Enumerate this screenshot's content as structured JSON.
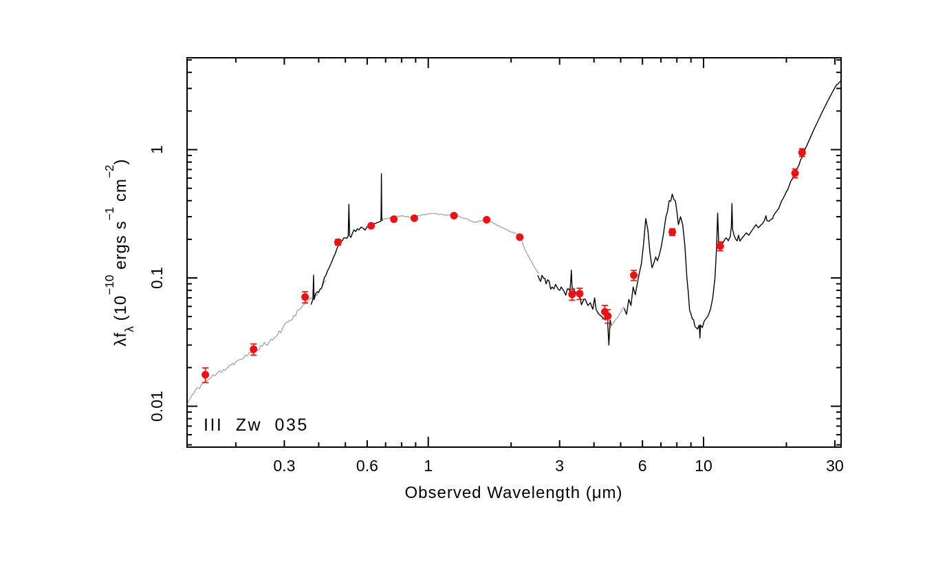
{
  "labels": {
    "x": "Observed Wavelength (μm)",
    "y": {
      "p1": "λf",
      "s1": "λ",
      "p2": " (10",
      "e1": "−10",
      "p3": " ergs s",
      "e2": "−1",
      "p4": " cm",
      "e3": "−2",
      "p5": ")"
    }
  },
  "chart_data": {
    "type": "line",
    "title": "III Zw 035",
    "xlabel": "Observed Wavelength (μm)",
    "ylabel": "λfλ (10−10 ergs s−1 cm−2)",
    "xscale": "log",
    "yscale": "log",
    "xlim": [
      0.133,
      31.6
    ],
    "ylim": [
      0.0048,
      5.2
    ],
    "grid": false,
    "legend": "none",
    "colors": {
      "background": "#ffffff",
      "axis": "#000000",
      "spectrum_observed": "#000000",
      "spectrum_model": "#a9a9a9",
      "photometry": "#ed1211"
    },
    "axes": {
      "x": {
        "labeled": [
          {
            "v": 0.3,
            "t": "0.3"
          },
          {
            "v": 0.6,
            "t": "0.6"
          },
          {
            "v": 1,
            "t": "1"
          },
          {
            "v": 3,
            "t": "3"
          },
          {
            "v": 6,
            "t": "6"
          },
          {
            "v": 10,
            "t": "10"
          },
          {
            "v": 30,
            "t": "30"
          }
        ],
        "decades": [
          1,
          10
        ],
        "minor": [
          0.2,
          0.4,
          0.5,
          0.7,
          0.8,
          0.9,
          2,
          4,
          5,
          7,
          8,
          9,
          20
        ]
      },
      "y": {
        "labeled": [
          {
            "v": 0.01,
            "t": "0.01"
          },
          {
            "v": 0.1,
            "t": "0.1"
          },
          {
            "v": 1,
            "t": "1"
          }
        ],
        "decades": [
          0.01,
          0.1,
          1
        ],
        "minor": [
          0.005,
          0.006,
          0.007,
          0.008,
          0.009,
          0.02,
          0.03,
          0.04,
          0.05,
          0.06,
          0.07,
          0.08,
          0.09,
          0.2,
          0.3,
          0.4,
          0.5,
          0.6,
          0.7,
          0.8,
          0.9,
          2,
          3,
          4,
          5
        ]
      }
    },
    "series": [
      {
        "name": "model-spectrum-uv",
        "role": "model",
        "color": "#a9a9a9",
        "jitter_dex": 0.02,
        "seed": 11,
        "points": [
          [
            0.133,
            0.0105
          ],
          [
            0.14,
            0.0125
          ],
          [
            0.15,
            0.0148
          ],
          [
            0.16,
            0.0163
          ],
          [
            0.17,
            0.0178
          ],
          [
            0.18,
            0.0193
          ],
          [
            0.19,
            0.0208
          ],
          [
            0.2,
            0.0222
          ],
          [
            0.21,
            0.0233
          ],
          [
            0.22,
            0.0247
          ],
          [
            0.235,
            0.0275
          ],
          [
            0.25,
            0.0295
          ],
          [
            0.265,
            0.0318
          ],
          [
            0.28,
            0.0348
          ],
          [
            0.295,
            0.04
          ],
          [
            0.31,
            0.0455
          ],
          [
            0.325,
            0.051
          ],
          [
            0.34,
            0.0565
          ],
          [
            0.355,
            0.063
          ],
          [
            0.37,
            0.068
          ],
          [
            0.385,
            0.0715
          ],
          [
            0.4,
            0.078
          ],
          [
            0.412,
            0.086
          ],
          [
            0.425,
            0.096
          ]
        ]
      },
      {
        "name": "model-spectrum-nir",
        "role": "model",
        "color": "#a9a9a9",
        "jitter_dex": 0.005,
        "seed": 22,
        "points": [
          [
            0.678,
            0.283
          ],
          [
            0.7,
            0.29
          ],
          [
            0.73,
            0.296
          ],
          [
            0.76,
            0.3
          ],
          [
            0.8,
            0.304
          ],
          [
            0.84,
            0.302
          ],
          [
            0.88,
            0.3
          ],
          [
            0.92,
            0.306
          ],
          [
            0.96,
            0.311
          ],
          [
            1.0,
            0.315
          ],
          [
            1.05,
            0.317
          ],
          [
            1.1,
            0.314
          ],
          [
            1.16,
            0.311
          ],
          [
            1.22,
            0.308
          ],
          [
            1.3,
            0.301
          ],
          [
            1.38,
            0.29
          ],
          [
            1.44,
            0.276
          ],
          [
            1.48,
            0.272
          ],
          [
            1.54,
            0.279
          ],
          [
            1.6,
            0.284
          ],
          [
            1.66,
            0.277
          ],
          [
            1.72,
            0.268
          ],
          [
            1.8,
            0.256
          ],
          [
            1.88,
            0.244
          ],
          [
            1.96,
            0.233
          ],
          [
            2.04,
            0.226
          ],
          [
            2.1,
            0.219
          ],
          [
            2.16,
            0.208
          ],
          [
            2.24,
            0.168
          ],
          [
            2.32,
            0.146
          ],
          [
            2.4,
            0.128
          ],
          [
            2.46,
            0.116
          ],
          [
            2.52,
            0.108
          ]
        ]
      },
      {
        "name": "model-spectrum-bridge",
        "role": "model",
        "color": "#a9a9a9",
        "jitter_dex": 0.006,
        "seed": 33,
        "points": [
          [
            4.55,
            0.04
          ],
          [
            4.75,
            0.046
          ],
          [
            4.95,
            0.052
          ],
          [
            5.15,
            0.06
          ]
        ]
      },
      {
        "name": "observed-spectrum-optical",
        "role": "observed",
        "color": "#000000",
        "jitter_dex": 0.022,
        "seed": 44,
        "points": [
          [
            0.375,
            0.062
          ],
          [
            0.381,
            0.068
          ],
          [
            0.383,
            0.105
          ],
          [
            0.385,
            0.068
          ],
          [
            0.395,
            0.078
          ],
          [
            0.405,
            0.082
          ],
          [
            0.415,
            0.092
          ],
          [
            0.425,
            0.105
          ],
          [
            0.435,
            0.118
          ],
          [
            0.445,
            0.132
          ],
          [
            0.455,
            0.148
          ],
          [
            0.465,
            0.168
          ],
          [
            0.475,
            0.185
          ],
          [
            0.488,
            0.196
          ],
          [
            0.5,
            0.205
          ],
          [
            0.512,
            0.212
          ],
          [
            0.515,
            0.375
          ],
          [
            0.518,
            0.213
          ],
          [
            0.53,
            0.222
          ],
          [
            0.545,
            0.23
          ],
          [
            0.56,
            0.237
          ],
          [
            0.58,
            0.244
          ],
          [
            0.6,
            0.252
          ],
          [
            0.615,
            0.257
          ],
          [
            0.63,
            0.262
          ],
          [
            0.645,
            0.267
          ],
          [
            0.66,
            0.272
          ],
          [
            0.672,
            0.276
          ],
          [
            0.674,
            0.3
          ],
          [
            0.676,
            0.65
          ],
          [
            0.678,
            0.3
          ],
          [
            0.68,
            0.278
          ]
        ]
      },
      {
        "name": "observed-spectrum-mir-low",
        "role": "observed",
        "color": "#000000",
        "jitter_dex": 0.045,
        "seed": 55,
        "points": [
          [
            2.5,
            0.105
          ],
          [
            2.56,
            0.094
          ],
          [
            2.62,
            0.1
          ],
          [
            2.68,
            0.09
          ],
          [
            2.75,
            0.094
          ],
          [
            2.82,
            0.085
          ],
          [
            2.9,
            0.089
          ],
          [
            2.97,
            0.081
          ],
          [
            3.04,
            0.085
          ],
          [
            3.12,
            0.078
          ],
          [
            3.2,
            0.082
          ],
          [
            3.27,
            0.079
          ],
          [
            3.295,
            0.096
          ],
          [
            3.31,
            0.115
          ],
          [
            3.33,
            0.085
          ],
          [
            3.4,
            0.079
          ],
          [
            3.48,
            0.076
          ],
          [
            3.56,
            0.071
          ],
          [
            3.64,
            0.065
          ],
          [
            3.72,
            0.068
          ],
          [
            3.8,
            0.061
          ],
          [
            3.88,
            0.064
          ],
          [
            3.96,
            0.057
          ],
          [
            4.02,
            0.07
          ],
          [
            4.07,
            0.057
          ],
          [
            4.14,
            0.053
          ],
          [
            4.22,
            0.051
          ],
          [
            4.31,
            0.049
          ],
          [
            4.4,
            0.047
          ],
          [
            4.47,
            0.052
          ],
          [
            4.53,
            0.03
          ],
          [
            4.58,
            0.047
          ],
          [
            4.62,
            0.043
          ]
        ]
      },
      {
        "name": "observed-spectrum-mir-high",
        "role": "observed",
        "color": "#000000",
        "jitter_dex": 0.03,
        "seed": 66,
        "points": [
          [
            5.15,
            0.058
          ],
          [
            5.25,
            0.052
          ],
          [
            5.35,
            0.068
          ],
          [
            5.45,
            0.061
          ],
          [
            5.55,
            0.085
          ],
          [
            5.65,
            0.074
          ],
          [
            5.75,
            0.091
          ],
          [
            5.85,
            0.11
          ],
          [
            5.95,
            0.13
          ],
          [
            6.05,
            0.18
          ],
          [
            6.17,
            0.29
          ],
          [
            6.28,
            0.235
          ],
          [
            6.38,
            0.16
          ],
          [
            6.5,
            0.12
          ],
          [
            6.6,
            0.131
          ],
          [
            6.7,
            0.146
          ],
          [
            6.8,
            0.136
          ],
          [
            6.9,
            0.15
          ],
          [
            7.0,
            0.17
          ],
          [
            7.15,
            0.22
          ],
          [
            7.3,
            0.3
          ],
          [
            7.5,
            0.4
          ],
          [
            7.7,
            0.45
          ],
          [
            7.9,
            0.4
          ],
          [
            8.0,
            0.33
          ],
          [
            8.1,
            0.26
          ],
          [
            8.25,
            0.3
          ],
          [
            8.4,
            0.26
          ],
          [
            8.55,
            0.18
          ],
          [
            8.7,
            0.1
          ],
          [
            8.9,
            0.056
          ],
          [
            9.1,
            0.048
          ],
          [
            9.3,
            0.042
          ],
          [
            9.5,
            0.04
          ],
          [
            9.65,
            0.043
          ],
          [
            9.7,
            0.034
          ],
          [
            9.75,
            0.043
          ],
          [
            9.9,
            0.041
          ],
          [
            10.05,
            0.046
          ],
          [
            10.2,
            0.048
          ],
          [
            10.4,
            0.051
          ],
          [
            10.6,
            0.057
          ],
          [
            10.8,
            0.07
          ],
          [
            11.0,
            0.1
          ],
          [
            11.15,
            0.17
          ],
          [
            11.25,
            0.32
          ],
          [
            11.35,
            0.19
          ],
          [
            11.5,
            0.175
          ],
          [
            11.65,
            0.185
          ],
          [
            11.8,
            0.19
          ],
          [
            11.95,
            0.2
          ],
          [
            12.1,
            0.205
          ],
          [
            12.3,
            0.195
          ],
          [
            12.5,
            0.21
          ],
          [
            12.62,
            0.25
          ],
          [
            12.68,
            0.38
          ],
          [
            12.75,
            0.24
          ],
          [
            12.9,
            0.215
          ],
          [
            13.1,
            0.2
          ],
          [
            13.4,
            0.215
          ],
          [
            13.7,
            0.2
          ],
          [
            14.0,
            0.212
          ],
          [
            14.3,
            0.225
          ],
          [
            14.6,
            0.215
          ],
          [
            14.9,
            0.23
          ],
          [
            15.2,
            0.245
          ],
          [
            15.5,
            0.26
          ],
          [
            15.8,
            0.246
          ],
          [
            16.1,
            0.256
          ],
          [
            16.4,
            0.266
          ],
          [
            16.7,
            0.285
          ],
          [
            16.85,
            0.305
          ],
          [
            17.0,
            0.28
          ],
          [
            17.3,
            0.276
          ],
          [
            17.6,
            0.287
          ],
          [
            18.0,
            0.31
          ]
        ]
      },
      {
        "name": "observed-spectrum-rise",
        "role": "observed",
        "color": "#000000",
        "jitter_dex": 0.01,
        "seed": 77,
        "points": [
          [
            18.0,
            0.31
          ],
          [
            18.5,
            0.335
          ],
          [
            19.0,
            0.375
          ],
          [
            19.5,
            0.42
          ],
          [
            20.0,
            0.47
          ],
          [
            20.5,
            0.53
          ],
          [
            21.0,
            0.59
          ],
          [
            21.5,
            0.65
          ],
          [
            22.0,
            0.73
          ],
          [
            22.5,
            0.83
          ],
          [
            23.0,
            0.93
          ],
          [
            23.5,
            1.03
          ],
          [
            24.0,
            1.14
          ],
          [
            24.5,
            1.26
          ],
          [
            25.0,
            1.39
          ],
          [
            25.5,
            1.52
          ],
          [
            26.0,
            1.66
          ],
          [
            26.5,
            1.81
          ],
          [
            27.0,
            1.97
          ],
          [
            27.5,
            2.13
          ],
          [
            28.0,
            2.3
          ],
          [
            28.5,
            2.48
          ],
          [
            29.0,
            2.66
          ],
          [
            29.5,
            2.85
          ],
          [
            30.0,
            3.04
          ],
          [
            30.8,
            3.25
          ],
          [
            31.6,
            3.45
          ]
        ]
      }
    ],
    "photometry": {
      "name": "photometric-points",
      "color": "#ed1211",
      "symbol": "filled-circle",
      "points": [
        {
          "l": 0.155,
          "v": 0.0176,
          "err": 0.13
        },
        {
          "l": 0.232,
          "v": 0.0278,
          "err": 0.1
        },
        {
          "l": 0.357,
          "v": 0.071,
          "err": 0.1
        },
        {
          "l": 0.47,
          "v": 0.19,
          "err": 0.05
        },
        {
          "l": 0.62,
          "v": 0.255,
          "err": 0.03
        },
        {
          "l": 0.75,
          "v": 0.287,
          "err": 0.03
        },
        {
          "l": 0.89,
          "v": 0.292,
          "err": 0.03
        },
        {
          "l": 1.24,
          "v": 0.306,
          "err": 0.03
        },
        {
          "l": 1.63,
          "v": 0.284,
          "err": 0.03
        },
        {
          "l": 2.15,
          "v": 0.208,
          "err": 0.03
        },
        {
          "l": 3.33,
          "v": 0.0745,
          "err": 0.1
        },
        {
          "l": 3.55,
          "v": 0.0755,
          "err": 0.1
        },
        {
          "l": 4.38,
          "v": 0.0545,
          "err": 0.12
        },
        {
          "l": 4.49,
          "v": 0.0505,
          "err": 0.12
        },
        {
          "l": 5.58,
          "v": 0.105,
          "err": 0.09
        },
        {
          "l": 7.7,
          "v": 0.228,
          "err": 0.06
        },
        {
          "l": 11.5,
          "v": 0.177,
          "err": 0.08
        },
        {
          "l": 21.5,
          "v": 0.655,
          "err": 0.08
        },
        {
          "l": 22.8,
          "v": 0.95,
          "err": 0.07
        }
      ]
    }
  }
}
